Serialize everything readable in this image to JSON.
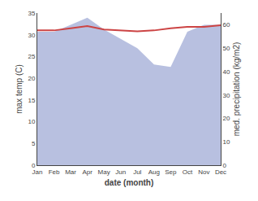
{
  "chart_data": {
    "type": "line",
    "xlabel": "date (month)",
    "ylabel": "max temp (C)",
    "y2label": "med. precipitation (kg/m2)",
    "categories": [
      "Jan",
      "Feb",
      "Mar",
      "Apr",
      "May",
      "Jun",
      "Jul",
      "Aug",
      "Sep",
      "Oct",
      "Nov",
      "Dec"
    ],
    "series": [
      {
        "type": "area",
        "axis": "y2",
        "color": "#b8c0e0",
        "values": [
          57,
          57,
          60,
          63,
          58,
          54,
          50,
          43,
          42,
          57,
          60,
          60
        ]
      },
      {
        "type": "line",
        "color": "#cc4444",
        "values": [
          31.0,
          31.0,
          31.5,
          32.0,
          31.2,
          31.0,
          30.8,
          31.0,
          31.5,
          31.8,
          31.8,
          32.2
        ]
      }
    ],
    "ylim": [
      0,
      35
    ],
    "yticks": [
      0,
      5,
      10,
      15,
      20,
      25,
      30,
      35
    ],
    "y2lim": [
      0,
      65
    ],
    "y2ticks": [
      0,
      10,
      20,
      30,
      40,
      50,
      60
    ],
    "grid": false
  }
}
